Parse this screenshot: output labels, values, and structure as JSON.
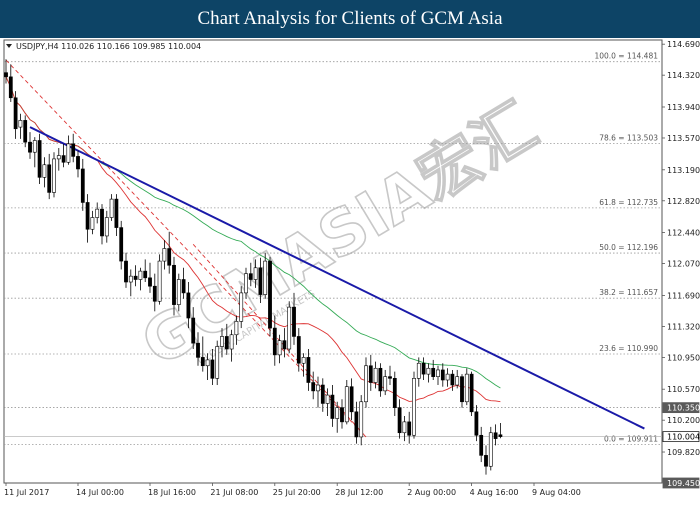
{
  "page": {
    "title": "Chart Analysis for Clients of GCM Asia",
    "watermark": "GCMASIA宏汇",
    "watermark_sub": "GLOBAL CAPITAL MARKETS"
  },
  "chart_data": {
    "type": "candlestick",
    "symbol_label": "USDJPY,H4  110.026 110.166 109.985 110.004",
    "ylim": [
      109.45,
      114.74
    ],
    "y_ticks": [
      114.69,
      114.32,
      113.94,
      113.57,
      113.19,
      112.82,
      112.44,
      112.07,
      111.69,
      111.32,
      110.95,
      110.57,
      110.2,
      109.82
    ],
    "y_tick_labels": [
      "114.690",
      "114.320",
      "113.940",
      "113.570",
      "113.190",
      "112.820",
      "112.440",
      "112.070",
      "111.690",
      "111.320",
      "110.950",
      "110.570",
      "110.200",
      "109.820"
    ],
    "x_tick_labels": [
      "11 Jul 2017",
      "14 Jul 00:00",
      "18 Jul 16:00",
      "21 Jul 08:00",
      "25 Jul 20:00",
      "28 Jul 12:00",
      "2 Aug 00:00",
      "4 Aug 16:00",
      "9 Aug 04:00"
    ],
    "x_tick_bars": [
      0,
      15,
      30,
      43,
      56,
      69,
      84,
      97,
      110
    ],
    "fibonacci": [
      {
        "label": "100.0 = 114.481",
        "price": 114.481
      },
      {
        "label": "78.6 = 113.503",
        "price": 113.503
      },
      {
        "label": "61.8 = 112.735",
        "price": 112.735
      },
      {
        "label": "50.0 = 112.196",
        "price": 112.196
      },
      {
        "label": "38.2 = 111.657",
        "price": 111.657
      },
      {
        "label": "23.6 = 110.990",
        "price": 110.99
      },
      {
        "label": "0.0 = 109.911",
        "price": 109.911
      }
    ],
    "highlight_levels": [
      {
        "label": "110.350",
        "price": 110.35,
        "kind": "resistance"
      },
      {
        "label": "110.004",
        "price": 110.004,
        "kind": "current"
      },
      {
        "label": "109.450",
        "price": 109.45,
        "kind": "bottom"
      }
    ],
    "trendline": {
      "start": {
        "bar": 5,
        "price": 113.7
      },
      "end": {
        "bar": 133,
        "price": 110.1
      },
      "color": "#1a1aa8"
    },
    "channel_dashed": {
      "upper": {
        "start": {
          "bar": 0,
          "price": 114.5
        },
        "end": {
          "bar": 75,
          "price": 110.0
        }
      },
      "lower": {
        "start": {
          "bar": 39,
          "price": 112.3
        },
        "end": {
          "bar": 75,
          "price": 110.0
        }
      },
      "color": "#dd3333"
    },
    "ma_colors": {
      "fast": "#dd3333",
      "slow": "#33aa55"
    },
    "candle_colors": {
      "up": "#ffffff",
      "down": "#000000"
    },
    "candles": [
      {
        "o": 114.35,
        "h": 114.51,
        "l": 114.22,
        "c": 114.3
      },
      {
        "o": 114.3,
        "h": 114.45,
        "l": 114.0,
        "c": 114.05
      },
      {
        "o": 114.05,
        "h": 114.13,
        "l": 113.56,
        "c": 113.68
      },
      {
        "o": 113.7,
        "h": 113.86,
        "l": 113.56,
        "c": 113.78
      },
      {
        "o": 113.78,
        "h": 113.84,
        "l": 113.46,
        "c": 113.52
      },
      {
        "o": 113.52,
        "h": 113.64,
        "l": 113.32,
        "c": 113.4
      },
      {
        "o": 113.4,
        "h": 113.58,
        "l": 113.22,
        "c": 113.54
      },
      {
        "o": 113.54,
        "h": 113.62,
        "l": 113.02,
        "c": 113.1
      },
      {
        "o": 113.1,
        "h": 113.34,
        "l": 112.98,
        "c": 113.25
      },
      {
        "o": 113.25,
        "h": 113.38,
        "l": 112.84,
        "c": 112.92
      },
      {
        "o": 112.92,
        "h": 113.4,
        "l": 112.86,
        "c": 113.32
      },
      {
        "o": 113.32,
        "h": 113.45,
        "l": 113.18,
        "c": 113.36
      },
      {
        "o": 113.36,
        "h": 113.5,
        "l": 113.22,
        "c": 113.28
      },
      {
        "o": 113.28,
        "h": 113.6,
        "l": 113.25,
        "c": 113.5
      },
      {
        "o": 113.5,
        "h": 113.62,
        "l": 113.28,
        "c": 113.35
      },
      {
        "o": 113.35,
        "h": 113.42,
        "l": 113.1,
        "c": 113.2
      },
      {
        "o": 113.2,
        "h": 113.32,
        "l": 112.7,
        "c": 112.8
      },
      {
        "o": 112.8,
        "h": 112.9,
        "l": 112.32,
        "c": 112.48
      },
      {
        "o": 112.48,
        "h": 112.7,
        "l": 112.42,
        "c": 112.62
      },
      {
        "o": 112.62,
        "h": 112.8,
        "l": 112.55,
        "c": 112.72
      },
      {
        "o": 112.72,
        "h": 112.78,
        "l": 112.3,
        "c": 112.4
      },
      {
        "o": 112.4,
        "h": 112.7,
        "l": 112.32,
        "c": 112.62
      },
      {
        "o": 112.62,
        "h": 112.9,
        "l": 112.58,
        "c": 112.84
      },
      {
        "o": 112.84,
        "h": 112.9,
        "l": 112.4,
        "c": 112.5
      },
      {
        "o": 112.5,
        "h": 112.58,
        "l": 112.0,
        "c": 112.1
      },
      {
        "o": 112.1,
        "h": 112.2,
        "l": 111.78,
        "c": 111.85
      },
      {
        "o": 111.85,
        "h": 112.0,
        "l": 111.68,
        "c": 111.92
      },
      {
        "o": 111.92,
        "h": 112.05,
        "l": 111.8,
        "c": 111.88
      },
      {
        "o": 111.88,
        "h": 112.02,
        "l": 111.75,
        "c": 111.98
      },
      {
        "o": 111.98,
        "h": 112.12,
        "l": 111.85,
        "c": 111.9
      },
      {
        "o": 111.9,
        "h": 112.08,
        "l": 111.72,
        "c": 111.8
      },
      {
        "o": 111.8,
        "h": 111.95,
        "l": 111.5,
        "c": 111.62
      },
      {
        "o": 111.62,
        "h": 112.18,
        "l": 111.58,
        "c": 112.1
      },
      {
        "o": 112.1,
        "h": 112.35,
        "l": 112.0,
        "c": 112.25
      },
      {
        "o": 112.25,
        "h": 112.45,
        "l": 111.95,
        "c": 112.05
      },
      {
        "o": 112.05,
        "h": 112.15,
        "l": 111.45,
        "c": 111.58
      },
      {
        "o": 111.58,
        "h": 111.95,
        "l": 111.5,
        "c": 111.88
      },
      {
        "o": 111.88,
        "h": 112.02,
        "l": 111.65,
        "c": 111.72
      },
      {
        "o": 111.72,
        "h": 111.85,
        "l": 111.3,
        "c": 111.42
      },
      {
        "o": 111.42,
        "h": 111.55,
        "l": 111.05,
        "c": 111.12
      },
      {
        "o": 111.12,
        "h": 111.25,
        "l": 110.85,
        "c": 110.95
      },
      {
        "o": 110.95,
        "h": 111.2,
        "l": 110.78,
        "c": 110.85
      },
      {
        "o": 110.85,
        "h": 111.0,
        "l": 110.68,
        "c": 110.92
      },
      {
        "o": 110.92,
        "h": 111.05,
        "l": 110.62,
        "c": 110.7
      },
      {
        "o": 110.7,
        "h": 111.15,
        "l": 110.62,
        "c": 111.08
      },
      {
        "o": 111.08,
        "h": 111.3,
        "l": 110.95,
        "c": 111.2
      },
      {
        "o": 111.2,
        "h": 111.35,
        "l": 110.98,
        "c": 111.05
      },
      {
        "o": 111.05,
        "h": 111.28,
        "l": 110.9,
        "c": 111.22
      },
      {
        "o": 111.22,
        "h": 111.45,
        "l": 111.1,
        "c": 111.38
      },
      {
        "o": 111.38,
        "h": 111.8,
        "l": 111.3,
        "c": 111.72
      },
      {
        "o": 111.72,
        "h": 112.02,
        "l": 111.65,
        "c": 111.95
      },
      {
        "o": 111.95,
        "h": 112.08,
        "l": 111.8,
        "c": 111.88
      },
      {
        "o": 111.88,
        "h": 112.12,
        "l": 111.78,
        "c": 112.02
      },
      {
        "o": 112.02,
        "h": 112.14,
        "l": 111.6,
        "c": 111.7
      },
      {
        "o": 111.7,
        "h": 112.2,
        "l": 111.65,
        "c": 112.1
      },
      {
        "o": 112.1,
        "h": 112.15,
        "l": 111.2,
        "c": 111.3
      },
      {
        "o": 111.3,
        "h": 111.45,
        "l": 110.85,
        "c": 110.98
      },
      {
        "o": 110.98,
        "h": 111.22,
        "l": 110.88,
        "c": 111.15
      },
      {
        "o": 111.15,
        "h": 111.3,
        "l": 110.95,
        "c": 111.05
      },
      {
        "o": 111.05,
        "h": 111.62,
        "l": 111.0,
        "c": 111.55
      },
      {
        "o": 111.55,
        "h": 111.72,
        "l": 111.1,
        "c": 111.2
      },
      {
        "o": 111.2,
        "h": 111.3,
        "l": 110.78,
        "c": 110.88
      },
      {
        "o": 110.88,
        "h": 111.0,
        "l": 110.72,
        "c": 110.95
      },
      {
        "o": 110.95,
        "h": 111.05,
        "l": 110.55,
        "c": 110.65
      },
      {
        "o": 110.65,
        "h": 110.78,
        "l": 110.45,
        "c": 110.55
      },
      {
        "o": 110.55,
        "h": 110.72,
        "l": 110.35,
        "c": 110.62
      },
      {
        "o": 110.62,
        "h": 110.7,
        "l": 110.3,
        "c": 110.4
      },
      {
        "o": 110.4,
        "h": 110.58,
        "l": 110.25,
        "c": 110.5
      },
      {
        "o": 110.5,
        "h": 110.62,
        "l": 110.12,
        "c": 110.22
      },
      {
        "o": 110.22,
        "h": 110.42,
        "l": 110.05,
        "c": 110.35
      },
      {
        "o": 110.35,
        "h": 110.45,
        "l": 110.1,
        "c": 110.18
      },
      {
        "o": 110.18,
        "h": 110.68,
        "l": 110.15,
        "c": 110.6
      },
      {
        "o": 110.6,
        "h": 110.7,
        "l": 110.2,
        "c": 110.3
      },
      {
        "o": 110.3,
        "h": 110.42,
        "l": 109.92,
        "c": 110.0
      },
      {
        "o": 110.0,
        "h": 110.5,
        "l": 109.9,
        "c": 110.42
      },
      {
        "o": 110.42,
        "h": 110.95,
        "l": 110.35,
        "c": 110.85
      },
      {
        "o": 110.85,
        "h": 110.98,
        "l": 110.55,
        "c": 110.65
      },
      {
        "o": 110.65,
        "h": 110.9,
        "l": 110.58,
        "c": 110.82
      },
      {
        "o": 110.82,
        "h": 110.88,
        "l": 110.48,
        "c": 110.55
      },
      {
        "o": 110.55,
        "h": 110.8,
        "l": 110.5,
        "c": 110.72
      },
      {
        "o": 110.72,
        "h": 110.85,
        "l": 110.62,
        "c": 110.7
      },
      {
        "o": 110.7,
        "h": 110.78,
        "l": 110.25,
        "c": 110.35
      },
      {
        "o": 110.35,
        "h": 110.45,
        "l": 109.98,
        "c": 110.05
      },
      {
        "o": 110.05,
        "h": 110.25,
        "l": 109.95,
        "c": 110.18
      },
      {
        "o": 110.18,
        "h": 110.3,
        "l": 109.92,
        "c": 110.02
      },
      {
        "o": 110.02,
        "h": 110.78,
        "l": 109.98,
        "c": 110.7
      },
      {
        "o": 110.7,
        "h": 110.95,
        "l": 110.6,
        "c": 110.88
      },
      {
        "o": 110.88,
        "h": 110.95,
        "l": 110.68,
        "c": 110.75
      },
      {
        "o": 110.75,
        "h": 110.88,
        "l": 110.65,
        "c": 110.82
      },
      {
        "o": 110.82,
        "h": 110.92,
        "l": 110.68,
        "c": 110.72
      },
      {
        "o": 110.72,
        "h": 110.85,
        "l": 110.62,
        "c": 110.8
      },
      {
        "o": 110.8,
        "h": 110.88,
        "l": 110.6,
        "c": 110.68
      },
      {
        "o": 110.68,
        "h": 110.82,
        "l": 110.6,
        "c": 110.75
      },
      {
        "o": 110.75,
        "h": 110.8,
        "l": 110.55,
        "c": 110.62
      },
      {
        "o": 110.62,
        "h": 110.8,
        "l": 110.58,
        "c": 110.72
      },
      {
        "o": 110.72,
        "h": 110.75,
        "l": 110.35,
        "c": 110.42
      },
      {
        "o": 110.42,
        "h": 110.82,
        "l": 110.38,
        "c": 110.75
      },
      {
        "o": 110.75,
        "h": 110.78,
        "l": 110.25,
        "c": 110.3
      },
      {
        "o": 110.3,
        "h": 110.38,
        "l": 109.95,
        "c": 110.02
      },
      {
        "o": 110.02,
        "h": 110.12,
        "l": 109.7,
        "c": 109.78
      },
      {
        "o": 109.78,
        "h": 109.9,
        "l": 109.55,
        "c": 109.65
      },
      {
        "o": 109.65,
        "h": 110.12,
        "l": 109.6,
        "c": 110.05
      },
      {
        "o": 110.05,
        "h": 110.15,
        "l": 109.9,
        "c": 109.98
      },
      {
        "o": 110.026,
        "h": 110.166,
        "l": 109.985,
        "c": 110.004
      }
    ]
  }
}
